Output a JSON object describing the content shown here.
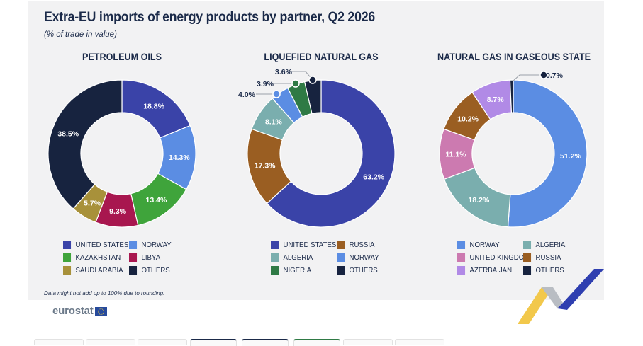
{
  "title": "Extra-EU imports of energy products by partner, Q2 2026",
  "subtitle": "(% of trade in value)",
  "footnote": "Data might not add up to 100% due to rounding.",
  "logo_text": "eurostat",
  "chart_data": [
    {
      "type": "pie",
      "title": "PETROLEUM OILS",
      "slices": [
        {
          "label": "UNITED STATES",
          "value": 18.8,
          "color": "#3a43a8",
          "display": "18.8%"
        },
        {
          "label": "NORWAY",
          "value": 14.3,
          "color": "#5b8de3",
          "display": "14.3%"
        },
        {
          "label": "KAZAKHSTAN",
          "value": 13.4,
          "color": "#3fa43b",
          "display": "13.4%"
        },
        {
          "label": "LIBYA",
          "value": 9.3,
          "color": "#a8174f",
          "display": "9.3%"
        },
        {
          "label": "SAUDI ARABIA",
          "value": 5.7,
          "color": "#a8913a",
          "display": "5.7%"
        },
        {
          "label": "OTHERS",
          "value": 38.5,
          "color": "#17233f",
          "display": "38.5%"
        }
      ],
      "legend": [
        "UNITED STATES",
        "NORWAY",
        "KAZAKHSTAN",
        "LIBYA",
        "SAUDI ARABIA",
        "OTHERS"
      ]
    },
    {
      "type": "pie",
      "title": "LIQUEFIED NATURAL GAS",
      "slices": [
        {
          "label": "UNITED STATES",
          "value": 63.2,
          "color": "#3a43a8",
          "display": "63.2%"
        },
        {
          "label": "RUSSIA",
          "value": 17.3,
          "color": "#9a5e22",
          "display": "17.3%"
        },
        {
          "label": "ALGERIA",
          "value": 8.1,
          "color": "#7aaeae",
          "display": "8.1%"
        },
        {
          "label": "NORWAY",
          "value": 4.0,
          "color": "#5b8de3",
          "display": "4.0%"
        },
        {
          "label": "NIGERIA",
          "value": 3.9,
          "color": "#2f7a45",
          "display": "3.9%"
        },
        {
          "label": "OTHERS",
          "value": 3.6,
          "color": "#17233f",
          "display": "3.6%"
        }
      ],
      "legend": [
        "UNITED STATES",
        "RUSSIA",
        "ALGERIA",
        "NORWAY",
        "NIGERIA",
        "OTHERS"
      ]
    },
    {
      "type": "pie",
      "title": "NATURAL GAS IN GASEOUS STATE",
      "slices": [
        {
          "label": "NORWAY",
          "value": 51.2,
          "color": "#5b8de3",
          "display": "51.2%"
        },
        {
          "label": "ALGERIA",
          "value": 18.2,
          "color": "#7aaeae",
          "display": "18.2%"
        },
        {
          "label": "UNITED KINGDOM",
          "value": 11.1,
          "color": "#cc7ab0",
          "display": "11.1%"
        },
        {
          "label": "RUSSIA",
          "value": 10.2,
          "color": "#9a5e22",
          "display": "10.2%"
        },
        {
          "label": "AZERBAIJAN",
          "value": 8.7,
          "color": "#b18ae6",
          "display": "8.7%"
        },
        {
          "label": "OTHERS",
          "value": 0.7,
          "color": "#17233f",
          "display": "0.7%"
        }
      ],
      "legend": [
        "NORWAY",
        "ALGERIA",
        "UNITED KINGDOM",
        "RUSSIA",
        "AZERBAIJAN",
        "OTHERS"
      ]
    }
  ]
}
